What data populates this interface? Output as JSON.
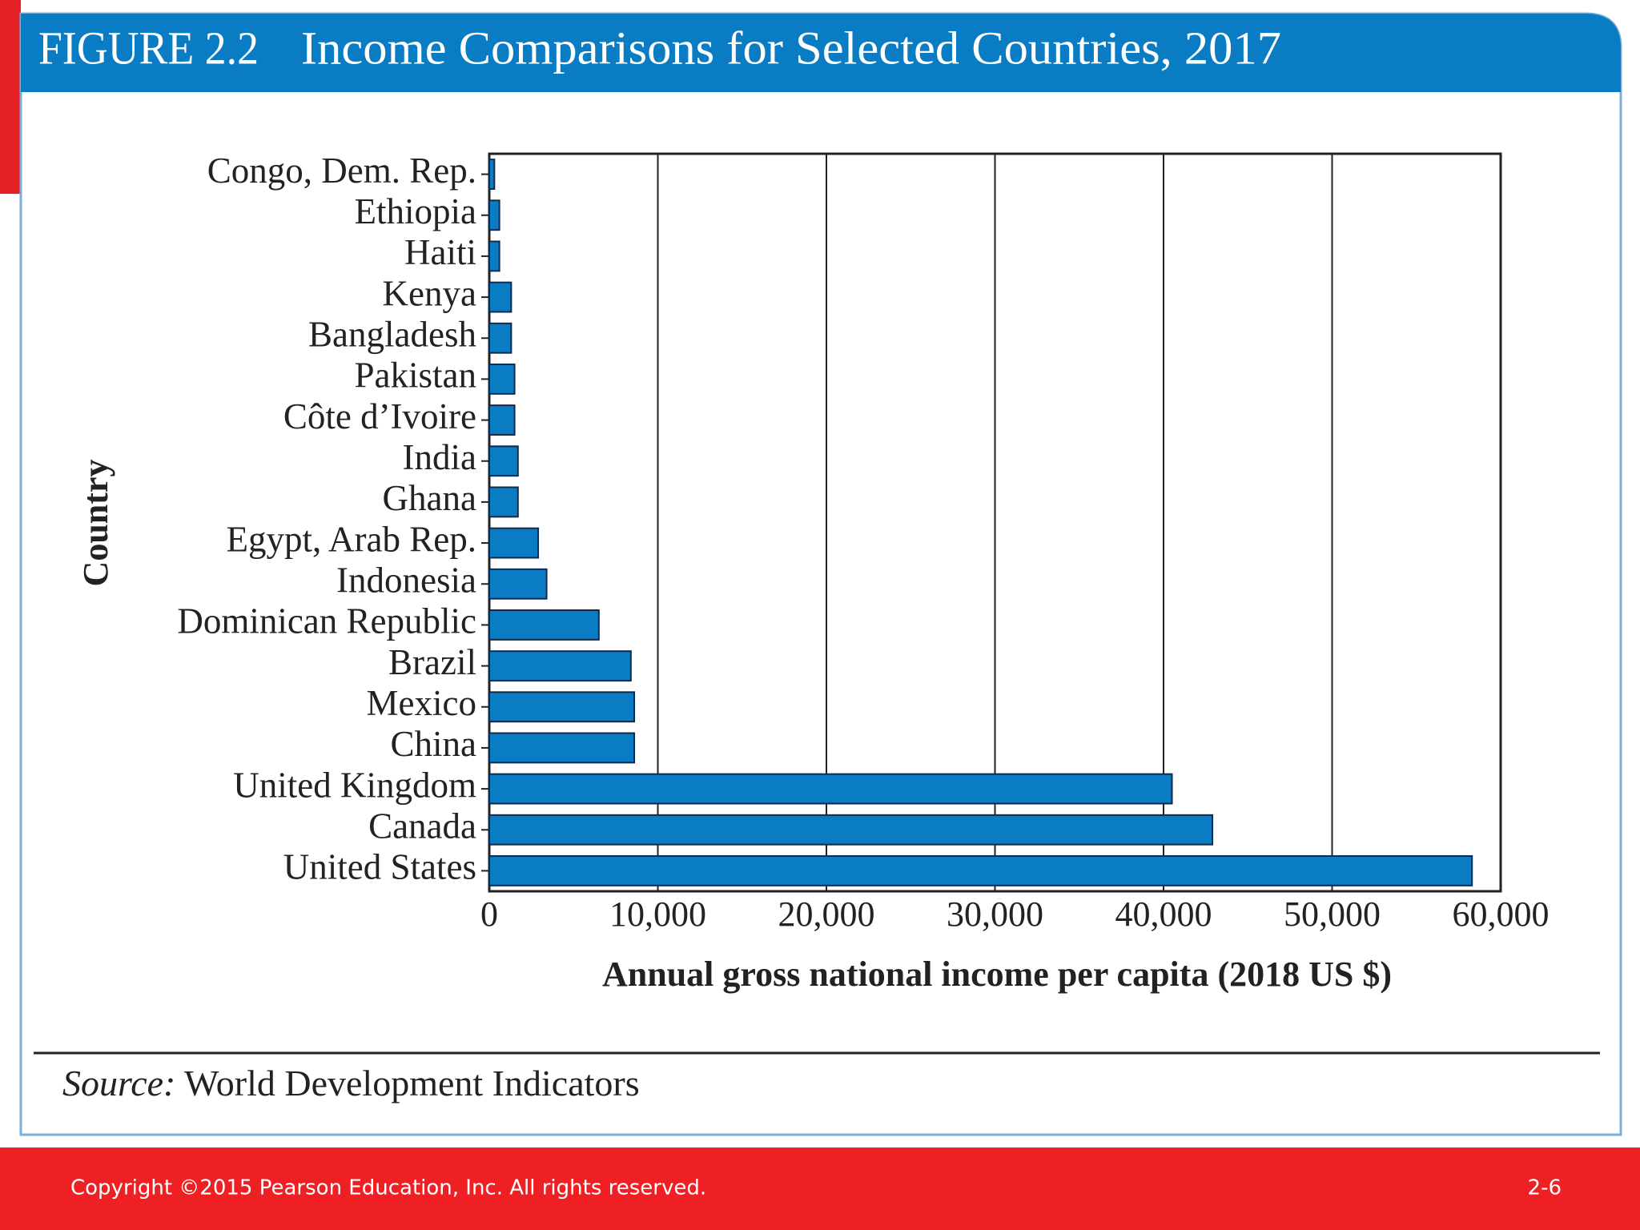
{
  "chart_data": {
    "type": "bar",
    "orientation": "horizontal",
    "figure_label": "FIGURE 2.2",
    "title": "Income Comparisons for Selected Countries, 2017",
    "x_label": "Annual gross national income per capita (2018 US $)",
    "y_label": "Country",
    "categories": [
      "Congo, Dem. Rep.",
      "Ethiopia",
      "Haiti",
      "Kenya",
      "Bangladesh",
      "Pakistan",
      "Côte d’Ivoire",
      "India",
      "Ghana",
      "Egypt, Arab Rep.",
      "Indonesia",
      "Dominican Republic",
      "Brazil",
      "Mexico",
      "China",
      "United Kingdom",
      "Canada",
      "United States"
    ],
    "values": [
      300,
      600,
      600,
      1300,
      1300,
      1500,
      1500,
      1700,
      1700,
      2900,
      3400,
      6500,
      8400,
      8600,
      8600,
      40500,
      42900,
      58300
    ],
    "color": "#0a7cc4",
    "xlim": [
      0,
      60000
    ],
    "xticks": [
      0,
      {
        "value": 10000,
        "label": "10,000"
      },
      {
        "value": 20000,
        "label": "20,000"
      },
      {
        "value": 30000,
        "label": "30,000"
      },
      {
        "value": 40000,
        "label": "40,000"
      },
      {
        "value": 50000,
        "label": "50,000"
      },
      {
        "value": 60000,
        "label": "60,000"
      }
    ],
    "grid": true,
    "source_label": "Source:",
    "source": "World Development Indicators"
  },
  "footer": {
    "copyright": "Copyright ©2015 Pearson Education, Inc. All rights reserved.",
    "page": "2-6"
  }
}
